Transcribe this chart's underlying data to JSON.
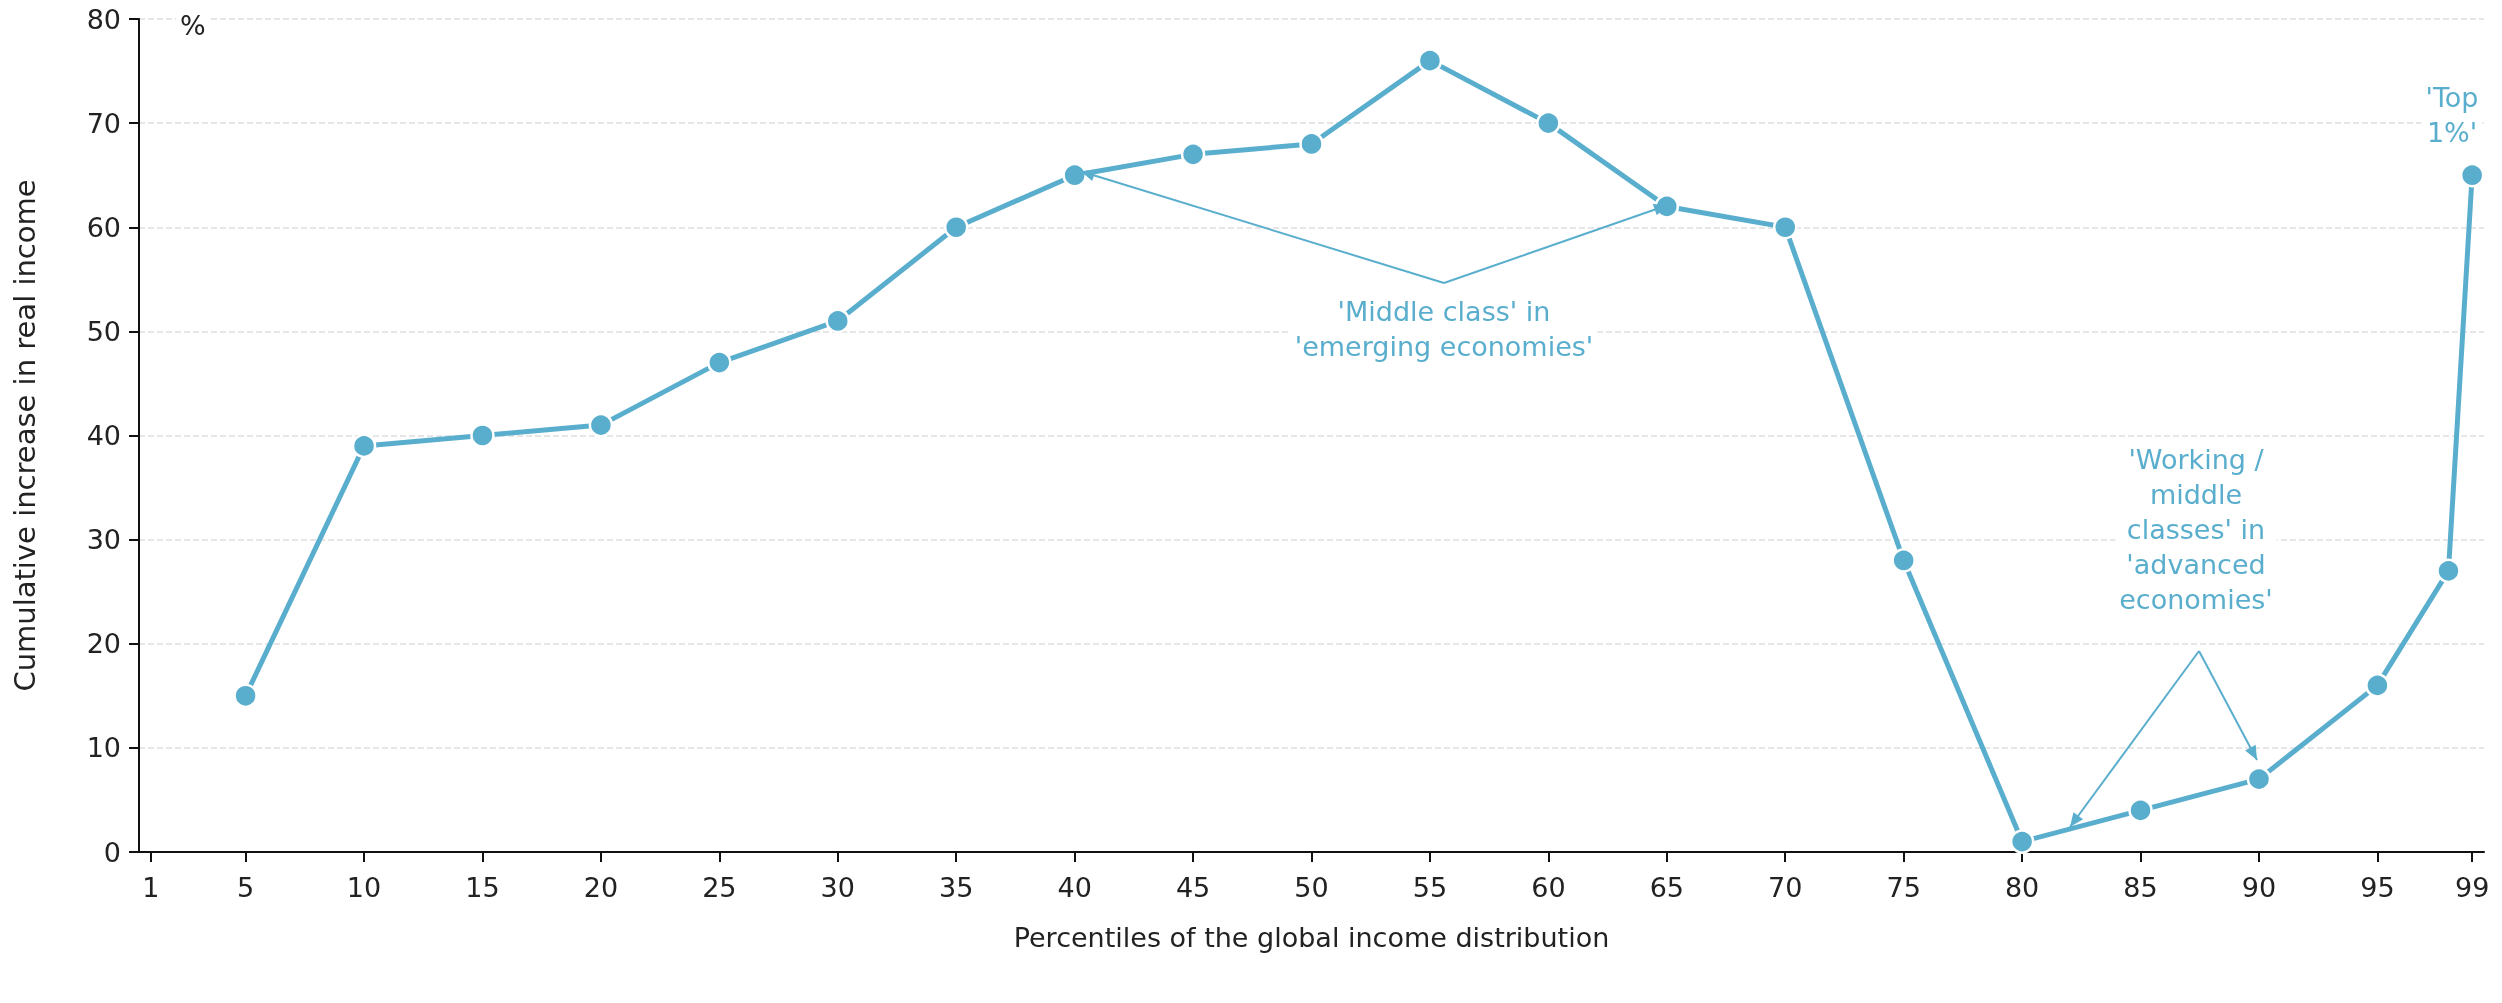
{
  "chart_data": {
    "type": "line",
    "xlabel": "Percentiles of the global income distribution",
    "ylabel": "Cumulative increase in real income",
    "x": [
      5,
      10,
      15,
      20,
      25,
      30,
      35,
      40,
      45,
      50,
      55,
      60,
      65,
      70,
      75,
      80,
      85,
      90,
      95,
      98,
      99
    ],
    "series": [
      {
        "color": "#5aaecd",
        "values": [
          15,
          39,
          40,
          41,
          47,
          51,
          60,
          65,
          67,
          68,
          76,
          70,
          62,
          60,
          28,
          1,
          4,
          7,
          16,
          27,
          65
        ]
      }
    ],
    "xlim": [
      0.5,
      99.5
    ],
    "xticks": [
      1,
      5,
      10,
      15,
      20,
      25,
      30,
      35,
      40,
      45,
      50,
      55,
      60,
      65,
      70,
      75,
      80,
      85,
      90,
      95,
      99
    ],
    "ylim": [
      0,
      80
    ],
    "yticks": [
      0,
      10,
      20,
      30,
      40,
      50,
      60,
      70,
      80
    ],
    "grid": "y",
    "marker": "circle",
    "line_style": "solid",
    "annotations": [
      "%",
      {
        "text": "'Middle class' in\n'emerging economies'",
        "x": 40,
        "y": 65
      },
      "'Working /\nmiddle\nclasses' in\n'advanced\neconomies'",
      "'Top\n1%'"
    ]
  }
}
